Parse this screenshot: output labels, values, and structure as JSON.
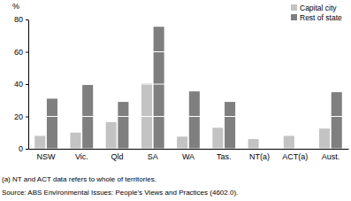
{
  "chart_data": {
    "type": "bar",
    "y_label": "%",
    "categories": [
      "NSW",
      "Vic.",
      "Qld",
      "SA",
      "WA",
      "Tas.",
      "NT(a)",
      "ACT(a)",
      "Aust."
    ],
    "series": [
      {
        "name": "Capital city",
        "color": "#c3c3c3",
        "values": [
          8,
          10,
          16.5,
          40.5,
          7.5,
          13,
          6,
          8,
          12.5
        ]
      },
      {
        "name": "Rest of state",
        "color": "#7f7f7f",
        "values": [
          31,
          39.5,
          29,
          75.5,
          35.5,
          29,
          null,
          null,
          35
        ]
      }
    ],
    "ylim": [
      0,
      80
    ],
    "yticks": [
      0,
      20,
      40,
      60,
      80
    ],
    "grid": true,
    "legend": "top-right",
    "annotations": [
      "(a) NT and ACT data refers to whole of territories.",
      "Source: ABS Environmental Issues: People's Views and Practices (4602.0)."
    ]
  }
}
